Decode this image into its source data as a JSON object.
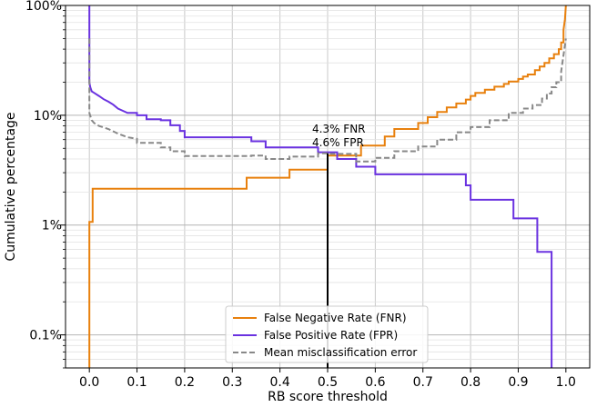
{
  "chart_data": {
    "type": "line",
    "xlabel": "RB score threshold",
    "ylabel": "Cumulative percentage",
    "x_ticks": [
      "0.0",
      "0.1",
      "0.2",
      "0.3",
      "0.4",
      "0.5",
      "0.6",
      "0.7",
      "0.8",
      "0.9",
      "1.0"
    ],
    "y_ticks": [
      "0.1%",
      "1%",
      "10%",
      "100%"
    ],
    "y_scale": "log",
    "xlim": [
      -0.05,
      1.05
    ],
    "ylim": [
      0.05,
      100
    ],
    "grid": true,
    "legend_position": "bottom-center",
    "annotation": {
      "x": 0.5,
      "lines": [
        "4.3% FNR",
        "4.6% FPR"
      ]
    },
    "series": [
      {
        "name": "False Negative Rate (FNR)",
        "color": "#e8800d",
        "style": "solid",
        "points": [
          [
            0.0,
            0.05
          ],
          [
            0.0,
            1.07
          ],
          [
            0.007,
            1.07
          ],
          [
            0.007,
            2.14
          ],
          [
            0.33,
            2.14
          ],
          [
            0.33,
            2.7
          ],
          [
            0.42,
            2.7
          ],
          [
            0.42,
            3.2
          ],
          [
            0.5,
            3.2
          ],
          [
            0.5,
            4.3
          ],
          [
            0.57,
            4.3
          ],
          [
            0.57,
            5.3
          ],
          [
            0.62,
            5.3
          ],
          [
            0.62,
            6.4
          ],
          [
            0.64,
            6.4
          ],
          [
            0.64,
            7.5
          ],
          [
            0.69,
            7.5
          ],
          [
            0.69,
            8.5
          ],
          [
            0.71,
            8.5
          ],
          [
            0.71,
            9.6
          ],
          [
            0.73,
            9.6
          ],
          [
            0.73,
            10.7
          ],
          [
            0.75,
            10.7
          ],
          [
            0.75,
            11.8
          ],
          [
            0.77,
            11.8
          ],
          [
            0.77,
            12.8
          ],
          [
            0.79,
            12.8
          ],
          [
            0.79,
            13.9
          ],
          [
            0.8,
            13.9
          ],
          [
            0.8,
            15.0
          ],
          [
            0.81,
            15.0
          ],
          [
            0.81,
            16.0
          ],
          [
            0.83,
            16.0
          ],
          [
            0.83,
            17.1
          ],
          [
            0.85,
            17.1
          ],
          [
            0.85,
            18.2
          ],
          [
            0.87,
            18.2
          ],
          [
            0.87,
            19.3
          ],
          [
            0.88,
            19.3
          ],
          [
            0.88,
            20.3
          ],
          [
            0.9,
            20.3
          ],
          [
            0.9,
            21.4
          ],
          [
            0.91,
            21.4
          ],
          [
            0.91,
            22.5
          ],
          [
            0.92,
            22.5
          ],
          [
            0.92,
            23.5
          ],
          [
            0.935,
            23.5
          ],
          [
            0.935,
            25.7
          ],
          [
            0.945,
            25.7
          ],
          [
            0.945,
            27.8
          ],
          [
            0.955,
            27.8
          ],
          [
            0.955,
            30.0
          ],
          [
            0.965,
            30.0
          ],
          [
            0.965,
            33.0
          ],
          [
            0.975,
            33.0
          ],
          [
            0.975,
            36.0
          ],
          [
            0.985,
            36.0
          ],
          [
            0.985,
            40.0
          ],
          [
            0.99,
            40.0
          ],
          [
            0.99,
            46.0
          ],
          [
            0.995,
            46.0
          ],
          [
            0.995,
            60.0
          ],
          [
            0.998,
            75.0
          ],
          [
            1.0,
            100.0
          ]
        ]
      },
      {
        "name": "False Positive Rate (FPR)",
        "color": "#6a32e0",
        "style": "solid",
        "points": [
          [
            0.0,
            100.0
          ],
          [
            0.0,
            20.0
          ],
          [
            0.002,
            18.0
          ],
          [
            0.005,
            16.5
          ],
          [
            0.01,
            16.0
          ],
          [
            0.02,
            15.0
          ],
          [
            0.03,
            14.0
          ],
          [
            0.04,
            13.3
          ],
          [
            0.05,
            12.5
          ],
          [
            0.06,
            11.5
          ],
          [
            0.07,
            11.0
          ],
          [
            0.08,
            10.5
          ],
          [
            0.1,
            10.5
          ],
          [
            0.1,
            10.0
          ],
          [
            0.12,
            10.0
          ],
          [
            0.12,
            9.2
          ],
          [
            0.15,
            9.2
          ],
          [
            0.15,
            9.0
          ],
          [
            0.17,
            9.0
          ],
          [
            0.17,
            8.1
          ],
          [
            0.19,
            8.1
          ],
          [
            0.19,
            7.2
          ],
          [
            0.2,
            7.2
          ],
          [
            0.2,
            6.3
          ],
          [
            0.34,
            6.3
          ],
          [
            0.34,
            5.8
          ],
          [
            0.37,
            5.8
          ],
          [
            0.37,
            5.1
          ],
          [
            0.48,
            5.1
          ],
          [
            0.48,
            4.6
          ],
          [
            0.52,
            4.6
          ],
          [
            0.52,
            4.0
          ],
          [
            0.56,
            4.0
          ],
          [
            0.56,
            3.4
          ],
          [
            0.6,
            3.4
          ],
          [
            0.6,
            2.9
          ],
          [
            0.79,
            2.9
          ],
          [
            0.79,
            2.3
          ],
          [
            0.8,
            2.3
          ],
          [
            0.8,
            1.7
          ],
          [
            0.89,
            1.7
          ],
          [
            0.89,
            1.15
          ],
          [
            0.94,
            1.15
          ],
          [
            0.94,
            0.57
          ],
          [
            0.97,
            0.57
          ],
          [
            0.97,
            0.05
          ]
        ]
      },
      {
        "name": "Mean misclassification error",
        "color": "#888888",
        "style": "dashed",
        "points": [
          [
            0.0,
            50.0
          ],
          [
            0.0,
            10.5
          ],
          [
            0.005,
            9.0
          ],
          [
            0.01,
            8.5
          ],
          [
            0.02,
            8.0
          ],
          [
            0.04,
            7.5
          ],
          [
            0.06,
            6.8
          ],
          [
            0.08,
            6.3
          ],
          [
            0.1,
            6.1
          ],
          [
            0.1,
            5.6
          ],
          [
            0.15,
            5.6
          ],
          [
            0.15,
            5.1
          ],
          [
            0.17,
            5.1
          ],
          [
            0.17,
            4.7
          ],
          [
            0.2,
            4.7
          ],
          [
            0.2,
            4.25
          ],
          [
            0.34,
            4.25
          ],
          [
            0.34,
            4.3
          ],
          [
            0.37,
            4.3
          ],
          [
            0.37,
            4.0
          ],
          [
            0.42,
            4.0
          ],
          [
            0.42,
            4.2
          ],
          [
            0.48,
            4.2
          ],
          [
            0.48,
            4.5
          ],
          [
            0.5,
            4.5
          ],
          [
            0.5,
            4.45
          ],
          [
            0.56,
            4.45
          ],
          [
            0.56,
            3.8
          ],
          [
            0.6,
            3.8
          ],
          [
            0.6,
            4.1
          ],
          [
            0.64,
            4.1
          ],
          [
            0.64,
            4.7
          ],
          [
            0.69,
            4.7
          ],
          [
            0.69,
            5.2
          ],
          [
            0.73,
            5.2
          ],
          [
            0.73,
            6.0
          ],
          [
            0.77,
            6.0
          ],
          [
            0.77,
            7.0
          ],
          [
            0.8,
            7.0
          ],
          [
            0.8,
            7.8
          ],
          [
            0.84,
            7.8
          ],
          [
            0.84,
            9.0
          ],
          [
            0.88,
            9.0
          ],
          [
            0.88,
            10.5
          ],
          [
            0.91,
            10.5
          ],
          [
            0.91,
            11.5
          ],
          [
            0.93,
            11.5
          ],
          [
            0.93,
            12.4
          ],
          [
            0.95,
            12.4
          ],
          [
            0.95,
            14.2
          ],
          [
            0.96,
            14.2
          ],
          [
            0.96,
            15.8
          ],
          [
            0.97,
            15.8
          ],
          [
            0.97,
            18.0
          ],
          [
            0.98,
            18.0
          ],
          [
            0.98,
            20.0
          ],
          [
            0.99,
            20.0
          ],
          [
            0.99,
            25.0
          ],
          [
            1.0,
            50.0
          ]
        ]
      }
    ]
  }
}
